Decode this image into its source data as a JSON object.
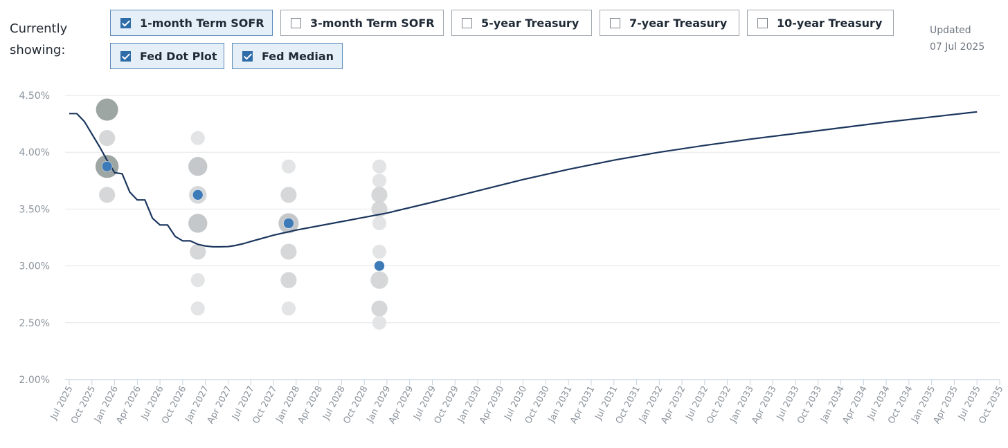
{
  "header": {
    "showing_label_line1": "Currently",
    "showing_label_line2": "showing:",
    "updated_label": "Updated",
    "updated_date": "07 Jul 2025"
  },
  "legend": {
    "row1": [
      {
        "label": "1-month Term SOFR",
        "checked": true,
        "swatch": "line",
        "color": "#1b365d"
      },
      {
        "label": "3-month Term SOFR",
        "checked": false,
        "swatch": "line",
        "color": "#3d7ab8"
      },
      {
        "label": "5-year Treasury",
        "checked": false,
        "swatch": "line",
        "color": "#a9adb1"
      },
      {
        "label": "7-year Treasury",
        "checked": false,
        "swatch": "line",
        "color": "#5fb59d"
      },
      {
        "label": "10-year Treasury",
        "checked": false,
        "swatch": "line",
        "color": "#6d7379"
      }
    ],
    "row2": [
      {
        "label": "Fed Dot Plot",
        "checked": true,
        "swatch": "dot",
        "color": "#777c82"
      },
      {
        "label": "Fed Median",
        "checked": true,
        "swatch": "dot",
        "color": "#3d7ab8"
      }
    ]
  },
  "chart_data": {
    "type": "line",
    "ylim": [
      2.0,
      4.5
    ],
    "y_ticks": [
      "4.50%",
      "4.00%",
      "3.50%",
      "3.00%",
      "2.50%",
      "2.00%"
    ],
    "y_tick_values": [
      4.5,
      4.0,
      3.5,
      3.0,
      2.5,
      2.0
    ],
    "x_range": [
      "2025-07",
      "2035-10"
    ],
    "x_ticks": [
      "Jul 2025",
      "Oct 2025",
      "Jan 2026",
      "Apr 2026",
      "Jul 2026",
      "Oct 2026",
      "Jan 2027",
      "Apr 2027",
      "Jul 2027",
      "Oct 2027",
      "Jan 2028",
      "Apr 2028",
      "Jul 2028",
      "Oct 2028",
      "Jan 2029",
      "Apr 2029",
      "Jul 2029",
      "Oct 2029",
      "Jan 2030",
      "Apr 2030",
      "Jul 2030",
      "Oct 2030",
      "Jan 2031",
      "Apr 2031",
      "Jul 2031",
      "Oct 2031",
      "Jan 2032",
      "Apr 2032",
      "Jul 2032",
      "Oct 2032",
      "Jan 2033",
      "Apr 2033",
      "Jul 2033",
      "Oct 2033",
      "Jan 2034",
      "Apr 2034",
      "Jul 2034",
      "Oct 2034",
      "Jan 2035",
      "Apr 2035",
      "Jul 2035",
      "Oct 2035"
    ],
    "grid": true,
    "series": [
      {
        "name": "1-month Term SOFR",
        "color": "#1b365d",
        "points": [
          [
            "2025-07",
            4.34
          ],
          [
            "2025-08",
            4.34
          ],
          [
            "2025-09",
            4.27
          ],
          [
            "2025-10",
            4.16
          ],
          [
            "2025-11",
            4.05
          ],
          [
            "2025-12",
            3.93
          ],
          [
            "2026-01",
            3.82
          ],
          [
            "2026-02",
            3.81
          ],
          [
            "2026-03",
            3.65
          ],
          [
            "2026-04",
            3.58
          ],
          [
            "2026-05",
            3.58
          ],
          [
            "2026-06",
            3.42
          ],
          [
            "2026-07",
            3.36
          ],
          [
            "2026-08",
            3.36
          ],
          [
            "2026-09",
            3.26
          ],
          [
            "2026-10",
            3.22
          ],
          [
            "2026-11",
            3.22
          ],
          [
            "2026-12",
            3.19
          ],
          [
            "2027-01",
            3.175
          ],
          [
            "2027-02",
            3.168
          ],
          [
            "2027-03",
            3.168
          ],
          [
            "2027-04",
            3.17
          ],
          [
            "2027-05",
            3.18
          ],
          [
            "2027-06",
            3.195
          ],
          [
            "2027-07",
            3.215
          ],
          [
            "2027-10",
            3.27
          ],
          [
            "2028-01",
            3.315
          ],
          [
            "2028-07",
            3.39
          ],
          [
            "2029-01",
            3.465
          ],
          [
            "2029-07",
            3.56
          ],
          [
            "2030-01",
            3.66
          ],
          [
            "2030-07",
            3.76
          ],
          [
            "2031-01",
            3.85
          ],
          [
            "2031-07",
            3.93
          ],
          [
            "2032-01",
            4.0
          ],
          [
            "2032-07",
            4.06
          ],
          [
            "2033-01",
            4.115
          ],
          [
            "2033-07",
            4.165
          ],
          [
            "2034-01",
            4.215
          ],
          [
            "2034-07",
            4.265
          ],
          [
            "2035-01",
            4.31
          ],
          [
            "2035-07",
            4.355
          ]
        ]
      }
    ],
    "dot_plot": [
      {
        "x": "2025-12",
        "values": [
          {
            "rate": 4.375,
            "count": 7
          },
          {
            "rate": 4.125,
            "count": 2
          },
          {
            "rate": 3.875,
            "count": 8
          },
          {
            "rate": 3.625,
            "count": 2
          }
        ]
      },
      {
        "x": "2026-12",
        "values": [
          {
            "rate": 4.125,
            "count": 1
          },
          {
            "rate": 3.875,
            "count": 4
          },
          {
            "rate": 3.625,
            "count": 3
          },
          {
            "rate": 3.375,
            "count": 4
          },
          {
            "rate": 3.125,
            "count": 2
          },
          {
            "rate": 2.875,
            "count": 1
          },
          {
            "rate": 2.625,
            "count": 1
          }
        ]
      },
      {
        "x": "2027-12",
        "values": [
          {
            "rate": 3.875,
            "count": 1
          },
          {
            "rate": 3.625,
            "count": 2
          },
          {
            "rate": 3.375,
            "count": 5
          },
          {
            "rate": 3.125,
            "count": 2
          },
          {
            "rate": 2.875,
            "count": 2
          },
          {
            "rate": 2.625,
            "count": 1
          }
        ]
      },
      {
        "x": "2028-12",
        "values": [
          {
            "rate": 3.875,
            "count": 1
          },
          {
            "rate": 3.75,
            "count": 1
          },
          {
            "rate": 3.625,
            "count": 2
          },
          {
            "rate": 3.5,
            "count": 2
          },
          {
            "rate": 3.375,
            "count": 1
          },
          {
            "rate": 3.125,
            "count": 1
          },
          {
            "rate": 2.875,
            "count": 3
          },
          {
            "rate": 2.625,
            "count": 2
          },
          {
            "rate": 2.5,
            "count": 1
          }
        ]
      }
    ],
    "fed_median": [
      {
        "x": "2025-12",
        "value": 3.875
      },
      {
        "x": "2026-12",
        "value": 3.625
      },
      {
        "x": "2027-12",
        "value": 3.375
      },
      {
        "x": "2028-12",
        "value": 3.0
      }
    ]
  }
}
